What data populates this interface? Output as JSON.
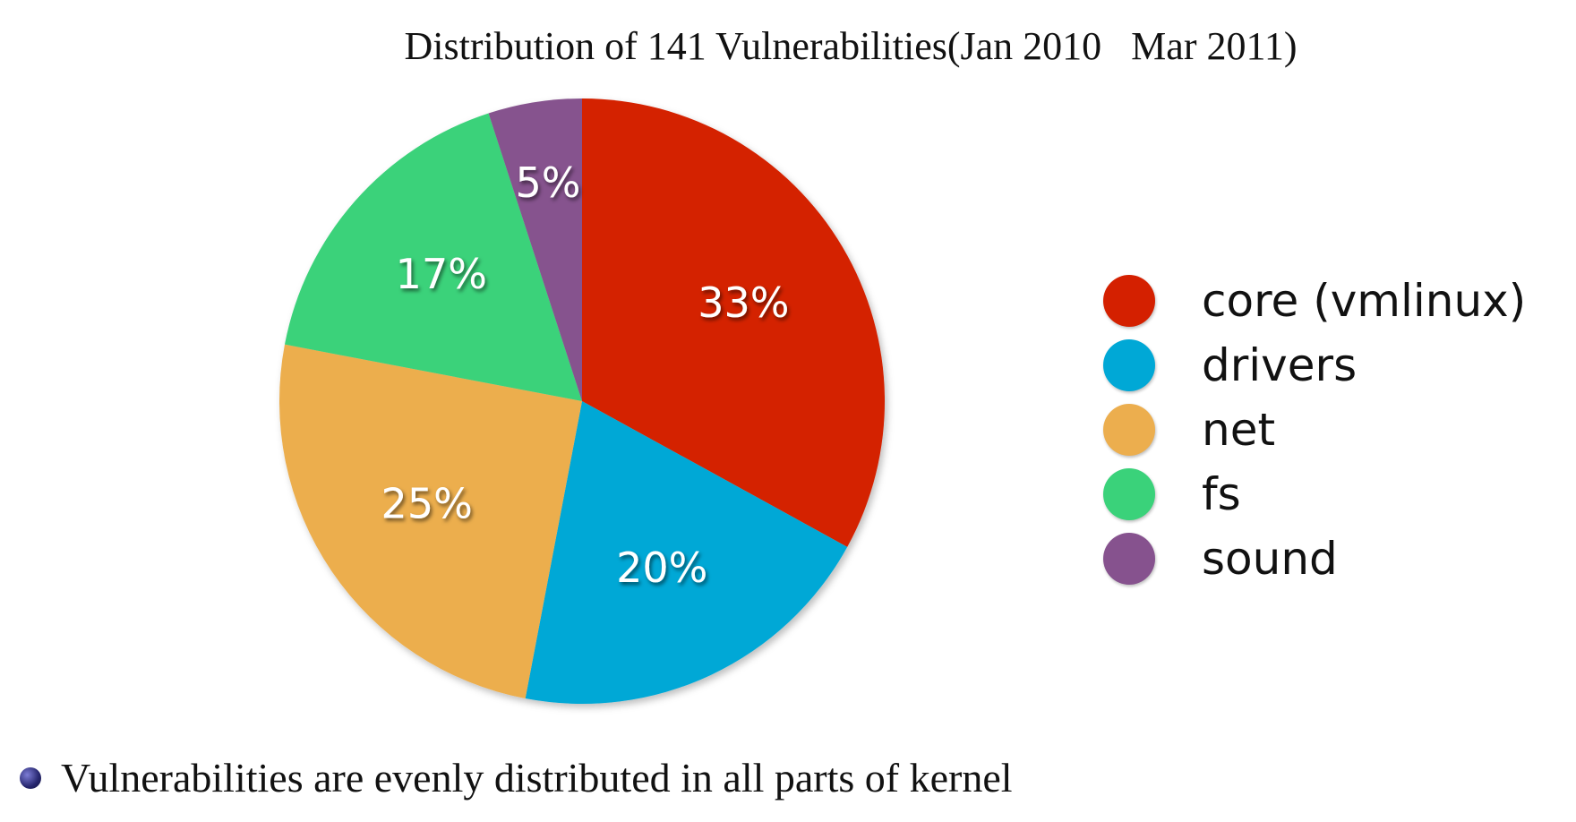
{
  "chart_data": {
    "type": "pie",
    "title": "Distribution of 141 Vulnerabilities(Jan 2010   Mar 2011)",
    "slices": [
      {
        "name": "core (vmlinux)",
        "value": 33,
        "label": "33%",
        "color": "#d42000"
      },
      {
        "name": "drivers",
        "value": 20,
        "label": "20%",
        "color": "#00a8d6"
      },
      {
        "name": "net",
        "value": 25,
        "label": "25%",
        "color": "#ecae4e"
      },
      {
        "name": "fs",
        "value": 17,
        "label": "17%",
        "color": "#3ad27a"
      },
      {
        "name": "sound",
        "value": 5,
        "label": "5%",
        "color": "#86528e"
      }
    ],
    "legend_position": "right",
    "start": "top",
    "direction": "clockwise"
  },
  "bullet": {
    "text": "Vulnerabilities are evenly distributed in all parts of kernel"
  }
}
